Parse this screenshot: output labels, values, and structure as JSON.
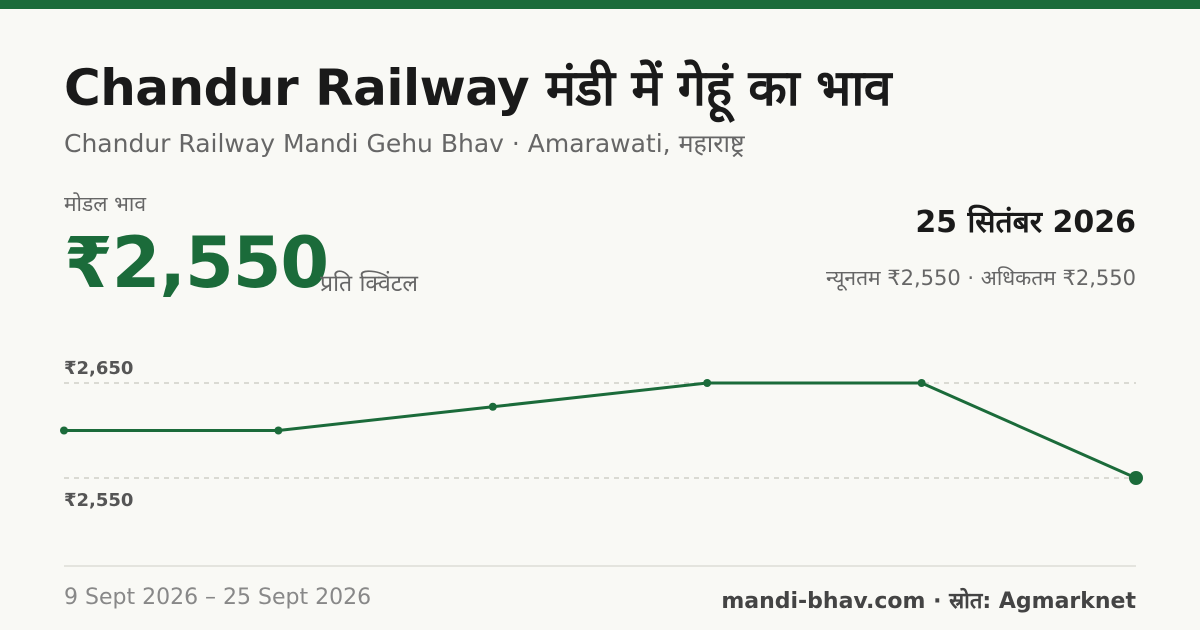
{
  "header": {
    "title": "Chandur Railway मंडी में गेहूं का भाव",
    "subtitle": "Chandur Railway Mandi Gehu Bhav · Amarawati, महाराष्ट्र"
  },
  "price_block": {
    "label": "मोडल भाव",
    "value": "₹2,550",
    "unit": "प्रति क्विंटल"
  },
  "date_block": {
    "date": "25 सितंबर 2026",
    "range": "न्यूनतम ₹2,550 · अधिकतम ₹2,550"
  },
  "footer": {
    "date_range": "9 Sept 2026 – 25 Sept 2026",
    "source": "mandi-bhav.com · स्रोत: Agmarknet"
  },
  "colors": {
    "accent": "#1b6b3a",
    "gridline": "#cfcfc8"
  },
  "chart_data": {
    "type": "line",
    "y_tick_labels": [
      "₹2,650",
      "₹2,550"
    ],
    "y_ticks": [
      2650,
      2550
    ],
    "ylim": [
      2530,
      2690
    ],
    "values": [
      2600,
      2600,
      2625,
      2650,
      2650,
      2550
    ],
    "grid": "dashed horizontal",
    "legend": "none"
  }
}
